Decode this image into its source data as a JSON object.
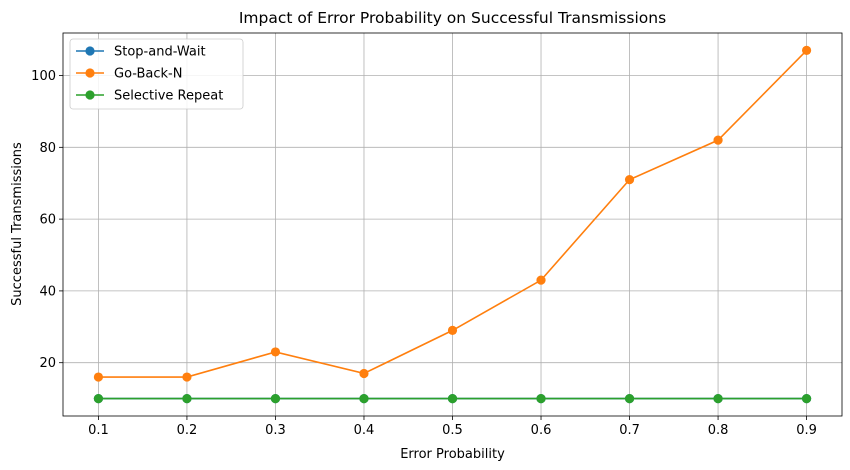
{
  "chart_data": {
    "type": "line",
    "title": "Impact of Error Probability on Successful Transmissions",
    "xlabel": "Error Probability",
    "ylabel": "Successful Transmissions",
    "x": [
      0.1,
      0.2,
      0.3,
      0.4,
      0.5,
      0.6,
      0.7,
      0.8,
      0.9
    ],
    "x_tick_labels": [
      "0.1",
      "0.2",
      "0.3",
      "0.4",
      "0.5",
      "0.6",
      "0.7",
      "0.8",
      "0.9"
    ],
    "y_ticks": [
      20,
      40,
      60,
      80,
      100
    ],
    "xlim": [
      0.06,
      0.94
    ],
    "ylim": [
      5.15,
      111.85
    ],
    "grid": true,
    "legend_position": "upper-left",
    "series": [
      {
        "name": "Stop-and-Wait",
        "color": "#1f77b4",
        "values": [
          10,
          10,
          10,
          10,
          10,
          10,
          10,
          10,
          10
        ]
      },
      {
        "name": "Go-Back-N",
        "color": "#ff7f0e",
        "values": [
          16,
          16,
          23,
          17,
          29,
          43,
          71,
          82,
          107
        ]
      },
      {
        "name": "Selective Repeat",
        "color": "#2ca02c",
        "values": [
          10,
          10,
          10,
          10,
          10,
          10,
          10,
          10,
          10
        ]
      }
    ]
  }
}
